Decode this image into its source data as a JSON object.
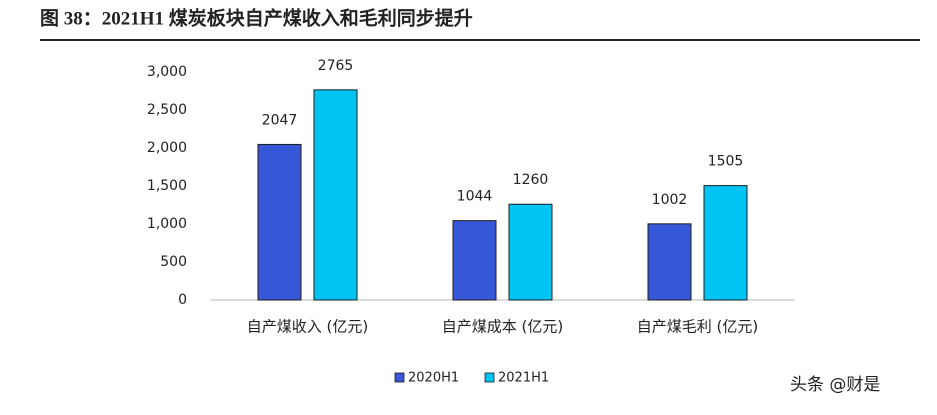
{
  "chart_data": {
    "type": "bar",
    "title": "图 38：2021H1 煤炭板块自产煤收入和毛利同步提升",
    "categories": [
      "自产煤收入 (亿元)",
      "自产煤成本 (亿元)",
      "自产煤毛利 (亿元)"
    ],
    "series": [
      {
        "name": "2020H1",
        "color": "#3557d8",
        "values": [
          2047,
          1044,
          1002
        ]
      },
      {
        "name": "2021H1",
        "color": "#00c4f4",
        "values": [
          2765,
          1260,
          1505
        ]
      }
    ],
    "ylim": [
      0,
      3000
    ],
    "yticks": [
      0,
      500,
      {
        "value": 1000,
        "label": "1,000"
      },
      {
        "value": 1500,
        "label": "1,500"
      },
      {
        "value": 2000,
        "label": "2,000"
      },
      {
        "value": 2500,
        "label": "2,500"
      },
      {
        "value": 3000,
        "label": "3,000"
      }
    ],
    "legend": "bottom",
    "watermark": "头条 @财是"
  }
}
